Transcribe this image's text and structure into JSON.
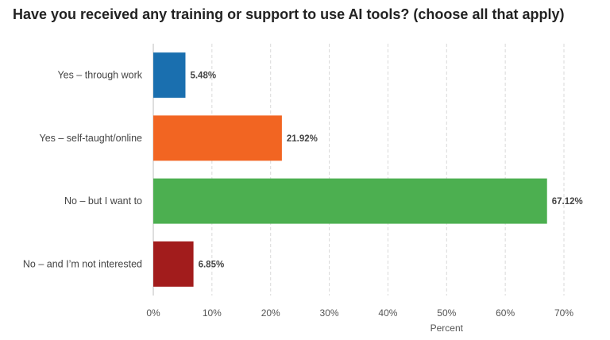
{
  "chart_data": {
    "type": "bar",
    "orientation": "horizontal",
    "title": "Have you received any training or support to use AI tools? (choose all that apply)",
    "xlabel": "Percent",
    "ylabel": "",
    "categories": [
      "Yes – through work",
      "Yes – self-taught/online",
      "No – but I want to",
      "No – and I’m not interested"
    ],
    "values": [
      5.48,
      21.92,
      67.12,
      6.85
    ],
    "value_labels": [
      "5.48%",
      "21.92%",
      "67.12%",
      "6.85%"
    ],
    "colors": [
      "#1a6faf",
      "#f26522",
      "#4caf50",
      "#a21c1c"
    ],
    "xlim": [
      0,
      70
    ],
    "xticks": [
      0,
      10,
      20,
      30,
      40,
      50,
      60,
      70
    ],
    "xtick_labels": [
      "0%",
      "10%",
      "20%",
      "30%",
      "40%",
      "50%",
      "60%",
      "70%"
    ],
    "grid": "vertical dashed",
    "legend": "none"
  }
}
